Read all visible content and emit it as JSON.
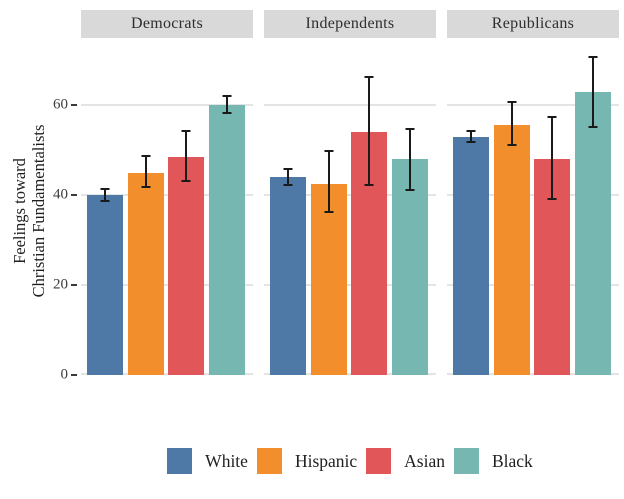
{
  "y_axis": {
    "title_line1": "Feelings toward",
    "title_line2": "Christian Fundamentalists"
  },
  "chart_data": {
    "type": "bar",
    "title": "",
    "xlabel": "",
    "ylabel": "Feelings toward Christian Fundamentalists",
    "ylim": [
      0,
      74.5
    ],
    "yticks": [
      0,
      20,
      40,
      60
    ],
    "grid": "horizontal",
    "error_bars": true,
    "legend_position": "bottom",
    "facet_labels": [
      "Democrats",
      "Independents",
      "Republicans"
    ],
    "groups": [
      {
        "name": "White",
        "color": "#4E79A7"
      },
      {
        "name": "Hispanic",
        "color": "#F28E2B"
      },
      {
        "name": "Asian",
        "color": "#E15759"
      },
      {
        "name": "Black",
        "color": "#76B7B2"
      }
    ],
    "facets": [
      {
        "label": "Democrats",
        "bars": [
          {
            "group": "White",
            "value": 40,
            "ci_low": 38.5,
            "ci_high": 41.5
          },
          {
            "group": "Hispanic",
            "value": 45,
            "ci_low": 41.5,
            "ci_high": 49
          },
          {
            "group": "Asian",
            "value": 48.5,
            "ci_low": 43,
            "ci_high": 54.5
          },
          {
            "group": "Black",
            "value": 60,
            "ci_low": 58,
            "ci_high": 62.3
          }
        ]
      },
      {
        "label": "Independents",
        "bars": [
          {
            "group": "White",
            "value": 44,
            "ci_low": 42,
            "ci_high": 46
          },
          {
            "group": "Hispanic",
            "value": 42.5,
            "ci_low": 36,
            "ci_high": 50
          },
          {
            "group": "Asian",
            "value": 54,
            "ci_low": 42,
            "ci_high": 66.5
          },
          {
            "group": "Black",
            "value": 48,
            "ci_low": 41,
            "ci_high": 55
          }
        ]
      },
      {
        "label": "Republicans",
        "bars": [
          {
            "group": "White",
            "value": 53,
            "ci_low": 51.5,
            "ci_high": 54.5
          },
          {
            "group": "Hispanic",
            "value": 55.5,
            "ci_low": 51,
            "ci_high": 61
          },
          {
            "group": "Asian",
            "value": 48,
            "ci_low": 39,
            "ci_high": 57.5
          },
          {
            "group": "Black",
            "value": 63,
            "ci_low": 55,
            "ci_high": 71
          }
        ]
      }
    ]
  }
}
